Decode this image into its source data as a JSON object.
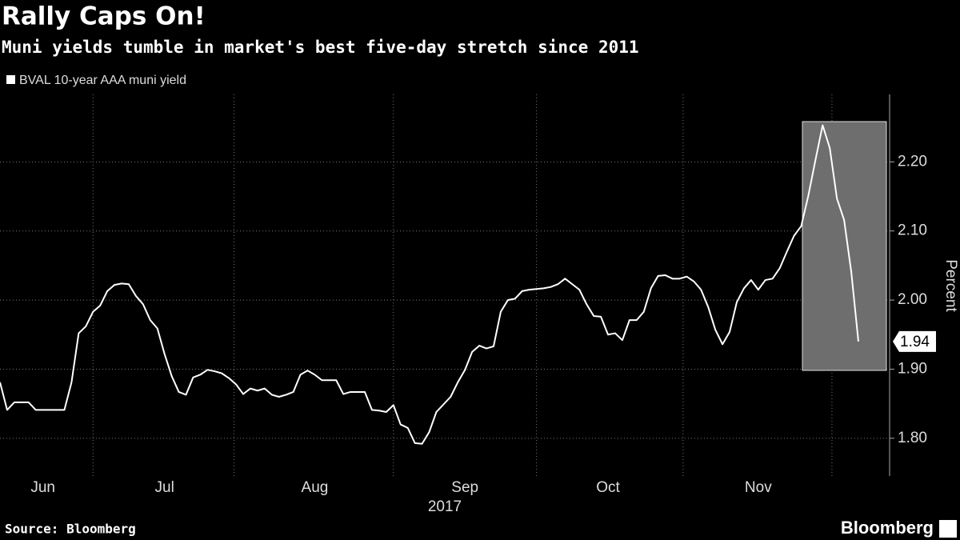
{
  "chart_data": {
    "type": "line",
    "title": "Rally Caps On!",
    "subtitle": "Muni yields tumble in market's best five-day stretch since 2011",
    "y_axis_label": "Percent",
    "x_axis_label": "2017",
    "source": "Source: Bloomberg",
    "brand": "Bloomberg",
    "categories": [
      null,
      null,
      null,
      null,
      null,
      null,
      "Jun",
      null,
      null,
      null,
      null,
      null,
      null,
      null,
      null,
      null,
      null,
      null,
      null,
      null,
      null,
      null,
      null,
      "Jul",
      null,
      null,
      null,
      null,
      null,
      null,
      null,
      null,
      null,
      null,
      null,
      null,
      null,
      null,
      null,
      null,
      null,
      null,
      null,
      null,
      "Aug",
      null,
      null,
      null,
      null,
      null,
      null,
      null,
      null,
      null,
      null,
      null,
      null,
      null,
      null,
      null,
      null,
      null,
      null,
      null,
      null,
      "Sep",
      null,
      null,
      null,
      null,
      null,
      null,
      null,
      null,
      null,
      null,
      null,
      null,
      null,
      null,
      null,
      null,
      null,
      null,
      null,
      "Oct",
      null,
      null,
      null,
      null,
      null,
      null,
      null,
      null,
      null,
      null,
      null,
      null,
      null,
      null,
      null,
      null,
      null,
      null,
      null,
      null,
      "Nov",
      null,
      null,
      null,
      null,
      null,
      null,
      null,
      null,
      null,
      null,
      null,
      null,
      null,
      null
    ],
    "series": [
      {
        "name": "BVAL 10-year AAA muni yield",
        "color": "#ffffff",
        "values": [
          1.881,
          1.841,
          1.852,
          1.852,
          1.852,
          1.841,
          1.841,
          1.841,
          1.841,
          1.841,
          1.881,
          1.952,
          1.962,
          1.983,
          1.992,
          2.013,
          2.022,
          2.024,
          2.023,
          2.006,
          1.994,
          1.971,
          1.959,
          1.922,
          1.89,
          1.867,
          1.863,
          1.888,
          1.892,
          1.899,
          1.897,
          1.894,
          1.887,
          1.878,
          1.864,
          1.872,
          1.869,
          1.872,
          1.863,
          1.86,
          1.863,
          1.867,
          1.892,
          1.898,
          1.892,
          1.884,
          1.884,
          1.884,
          1.864,
          1.867,
          1.867,
          1.867,
          1.841,
          1.84,
          1.838,
          1.848,
          1.82,
          1.815,
          1.793,
          1.792,
          1.809,
          1.838,
          1.849,
          1.86,
          1.881,
          1.899,
          1.925,
          1.934,
          1.93,
          1.933,
          1.983,
          2.0,
          2.002,
          2.013,
          2.015,
          2.016,
          2.017,
          2.019,
          2.023,
          2.031,
          2.023,
          2.015,
          1.994,
          1.977,
          1.976,
          1.95,
          1.952,
          1.942,
          1.971,
          1.971,
          1.983,
          2.017,
          2.035,
          2.036,
          2.031,
          2.031,
          2.034,
          2.027,
          2.015,
          1.99,
          1.957,
          1.936,
          1.954,
          1.997,
          2.017,
          2.029,
          2.015,
          2.029,
          2.031,
          2.046,
          2.07,
          2.093,
          2.107,
          2.151,
          2.203,
          2.253,
          2.22,
          2.147,
          2.116,
          2.041,
          1.94
        ]
      }
    ],
    "ylim": [
      1.75,
      2.3
    ],
    "yticks": [
      {
        "value": 1.8,
        "label": "1.80"
      },
      {
        "value": 1.9,
        "label": "1.90"
      },
      {
        "value": 2.0,
        "label": "2.00"
      },
      {
        "value": 2.1,
        "label": "2.10"
      },
      {
        "value": 2.2,
        "label": "2.20"
      }
    ],
    "grid": true
  }
}
